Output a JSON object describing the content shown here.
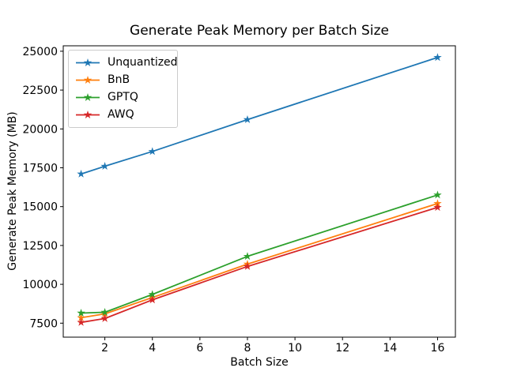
{
  "chart_data": {
    "type": "line",
    "title": "Generate Peak Memory per Batch Size",
    "xlabel": "Batch Size",
    "ylabel": "Generate Peak Memory (MB)",
    "x": [
      1,
      2,
      4,
      8,
      16
    ],
    "series": [
      {
        "name": "Unquantized",
        "color": "#1f77b4",
        "marker": "star",
        "values": [
          17100,
          17600,
          18550,
          20600,
          24600
        ]
      },
      {
        "name": "BnB",
        "color": "#ff7f0e",
        "marker": "star",
        "values": [
          7850,
          8100,
          9150,
          11300,
          15200
        ]
      },
      {
        "name": "GPTQ",
        "color": "#2ca02c",
        "marker": "star",
        "values": [
          8150,
          8200,
          9350,
          11800,
          15750
        ]
      },
      {
        "name": "AWQ",
        "color": "#d62728",
        "marker": "star",
        "values": [
          7550,
          7800,
          9000,
          11150,
          14950
        ]
      }
    ],
    "xticks": [
      2,
      4,
      6,
      8,
      10,
      12,
      14,
      16
    ],
    "yticks": [
      7500,
      10000,
      12500,
      15000,
      17500,
      20000,
      22500,
      25000
    ],
    "xlim": [
      0.25,
      16.75
    ],
    "ylim": [
      6600,
      25350
    ],
    "grid": false,
    "legend_position": "upper left",
    "spine_color": "#000000",
    "background": "#ffffff"
  }
}
